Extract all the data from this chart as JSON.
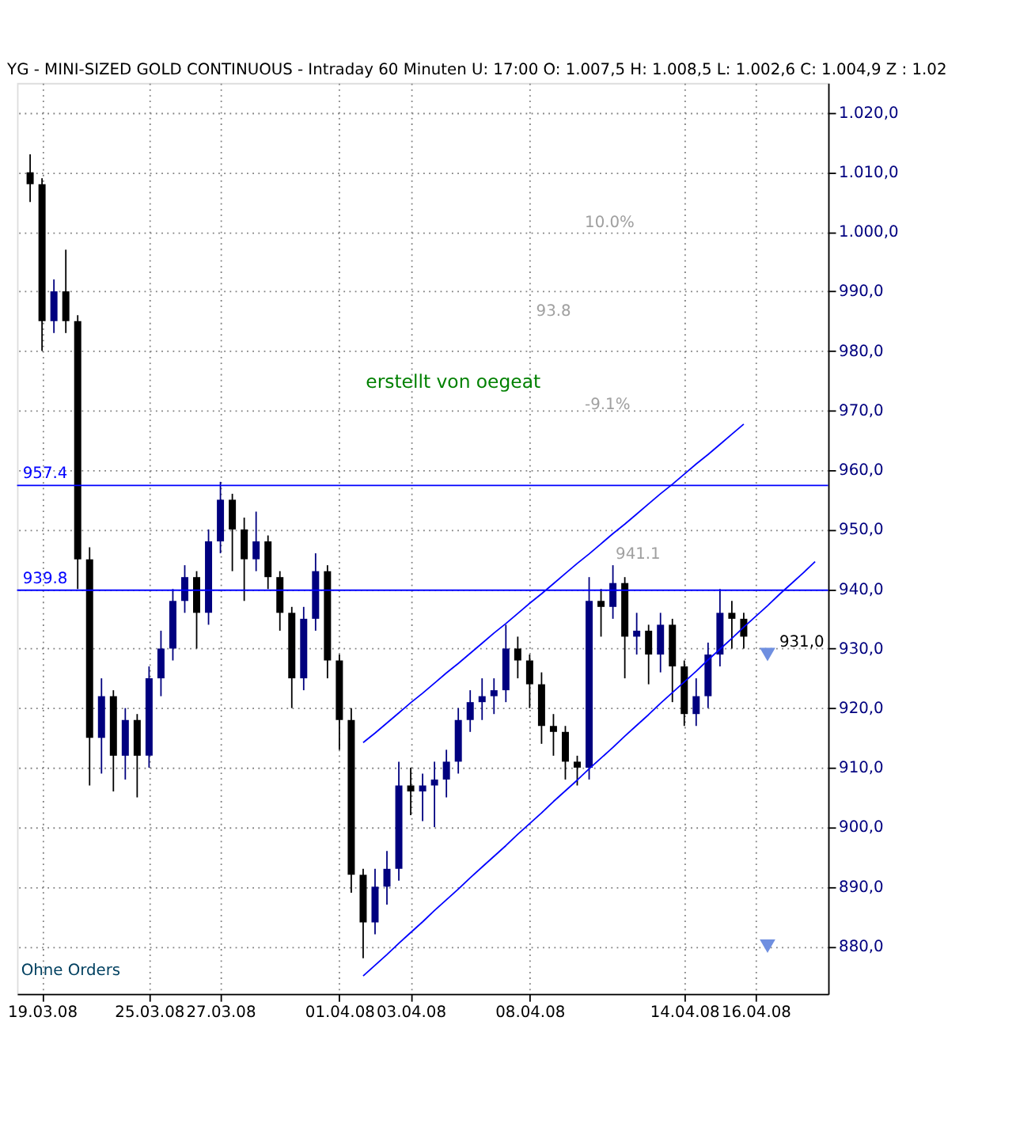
{
  "chart_data": {
    "type": "candlestick",
    "title": "YG - MINI-SIZED GOLD CONTINUOUS - Intraday 60 Minuten   U: 17:00   O: 1.007,5   H: 1.008,5   L: 1.002,6   C: 1.004,9   Z : 1.02",
    "categories": [
      null,
      "19.03.08",
      null,
      null,
      null,
      null,
      null,
      null,
      null,
      null,
      "25.03.08",
      null,
      null,
      null,
      null,
      null,
      "27.03.08",
      null,
      null,
      null,
      null,
      null,
      null,
      null,
      null,
      null,
      "01.04.08",
      null,
      null,
      null,
      null,
      null,
      "03.04.08",
      null,
      null,
      null,
      null,
      null,
      null,
      null,
      null,
      null,
      "08.04.08",
      null,
      null,
      null,
      null,
      null,
      null,
      null,
      null,
      null,
      null,
      null,
      null,
      "14.04.08",
      null,
      null,
      null,
      null,
      null,
      "16.04.08",
      null,
      null,
      null,
      null,
      null
    ],
    "series": [
      {
        "ohlc": [
          [
            1010,
            1013,
            1005,
            1008
          ],
          [
            1008,
            1009,
            980,
            985
          ],
          [
            985,
            992,
            983,
            990
          ],
          [
            990,
            997,
            983,
            985
          ],
          [
            985,
            986,
            940,
            945
          ],
          [
            945,
            947,
            907,
            915
          ],
          [
            915,
            925,
            909,
            922
          ],
          [
            922,
            923,
            906,
            912
          ],
          [
            912,
            920,
            908,
            918
          ],
          [
            918,
            919,
            905,
            912
          ],
          [
            912,
            927,
            910,
            925
          ],
          [
            925,
            933,
            922,
            930
          ],
          [
            930,
            940,
            928,
            938
          ],
          [
            938,
            944,
            936,
            942
          ],
          [
            942,
            943,
            930,
            936
          ],
          [
            936,
            950,
            934,
            948
          ],
          [
            948,
            958,
            946,
            955
          ],
          [
            955,
            956,
            943,
            950
          ],
          [
            950,
            952,
            938,
            945
          ],
          [
            945,
            953,
            943,
            948
          ],
          [
            948,
            949,
            940,
            942
          ],
          [
            942,
            943,
            933,
            936
          ],
          [
            936,
            937,
            920,
            925
          ],
          [
            925,
            937,
            923,
            935
          ],
          [
            935,
            946,
            933,
            943
          ],
          [
            943,
            944,
            925,
            928
          ],
          [
            928,
            929,
            913,
            918
          ],
          [
            918,
            920,
            889,
            892
          ],
          [
            892,
            893,
            878,
            884
          ],
          [
            884,
            893,
            882,
            890
          ],
          [
            890,
            896,
            887,
            893
          ],
          [
            893,
            911,
            891,
            907
          ],
          [
            907,
            910,
            902,
            906
          ],
          [
            906,
            909,
            901,
            907
          ],
          [
            907,
            911,
            900,
            908
          ],
          [
            908,
            913,
            905,
            911
          ],
          [
            911,
            920,
            909,
            918
          ],
          [
            918,
            923,
            916,
            921
          ],
          [
            921,
            925,
            918,
            922
          ],
          [
            922,
            925,
            919,
            923
          ],
          [
            923,
            934,
            921,
            930
          ],
          [
            930,
            932,
            925,
            928
          ],
          [
            928,
            929,
            920,
            924
          ],
          [
            924,
            926,
            914,
            917
          ],
          [
            917,
            919,
            912,
            916
          ],
          [
            916,
            917,
            908,
            911
          ],
          [
            911,
            912,
            907,
            910
          ],
          [
            910,
            942,
            908,
            938
          ],
          [
            938,
            940,
            932,
            937
          ],
          [
            937,
            944,
            935,
            941
          ],
          [
            941,
            942,
            925,
            932
          ],
          [
            932,
            936,
            929,
            933
          ],
          [
            933,
            934,
            924,
            929
          ],
          [
            929,
            936,
            926,
            934
          ],
          [
            934,
            935,
            921,
            927
          ],
          [
            927,
            928,
            917,
            919
          ],
          [
            919,
            925,
            917,
            922
          ],
          [
            922,
            931,
            920,
            929
          ],
          [
            929,
            940,
            927,
            936
          ],
          [
            936,
            938,
            930,
            935
          ],
          [
            935,
            936,
            930,
            932
          ],
          null,
          null,
          null,
          null,
          null,
          null
        ],
        "colors": [
          "#000000",
          "#000000",
          "#00007f",
          "#000000",
          "#000000",
          "#000000",
          "#00007f",
          "#000000",
          "#00007f",
          "#000000",
          "#00007f",
          "#00007f",
          "#00007f",
          "#00007f",
          "#000000",
          "#00007f",
          "#00007f",
          "#000000",
          "#000000",
          "#00007f",
          "#000000",
          "#000000",
          "#000000",
          "#00007f",
          "#00007f",
          "#000000",
          "#000000",
          "#000000",
          "#000000",
          "#00007f",
          "#00007f",
          "#00007f",
          "#000000",
          "#00007f",
          "#00007f",
          "#00007f",
          "#00007f",
          "#00007f",
          "#00007f",
          "#00007f",
          "#00007f",
          "#000000",
          "#000000",
          "#000000",
          "#000000",
          "#000000",
          "#000000",
          "#00007f",
          "#000000",
          "#00007f",
          "#000000",
          "#00007f",
          "#000000",
          "#00007f",
          "#000000",
          "#000000",
          "#00007f",
          "#00007f",
          "#00007f",
          "#000000",
          "#000000",
          null,
          null,
          null,
          null,
          null,
          null
        ]
      },
      {
        "type": "line",
        "color": "#0000ff",
        "values": [
          null,
          null,
          null,
          null,
          null,
          null,
          null,
          null,
          null,
          null,
          null,
          null,
          null,
          null,
          null,
          null,
          null,
          null,
          null,
          null,
          null,
          null,
          null,
          null,
          null,
          null,
          null,
          null,
          914.2,
          915.8,
          917.5,
          919.2,
          920.9,
          922.5,
          924.2,
          925.9,
          927.5,
          929.2,
          930.9,
          932.6,
          934.2,
          935.9,
          937.6,
          939.2,
          940.9,
          942.6,
          944.3,
          945.9,
          947.6,
          949.3,
          950.9,
          952.6,
          954.3,
          956.0,
          957.6,
          959.3,
          961.0,
          962.6,
          964.3,
          966.0,
          967.7,
          null,
          null,
          null,
          null,
          null,
          null
        ]
      },
      {
        "type": "line",
        "color": "#0000ff",
        "values": [
          null,
          null,
          null,
          null,
          null,
          null,
          null,
          null,
          null,
          null,
          null,
          null,
          null,
          null,
          null,
          null,
          null,
          null,
          null,
          null,
          null,
          null,
          null,
          null,
          null,
          null,
          null,
          null,
          875.0,
          876.8,
          878.6,
          880.5,
          882.3,
          884.1,
          886.0,
          887.8,
          889.6,
          891.5,
          893.3,
          895.1,
          896.9,
          898.8,
          900.6,
          902.4,
          904.3,
          906.1,
          907.9,
          909.8,
          911.6,
          913.4,
          915.3,
          917.1,
          918.9,
          920.8,
          922.6,
          924.4,
          926.2,
          928.1,
          929.9,
          931.7,
          933.6,
          935.4,
          937.2,
          939.1,
          940.9,
          942.7,
          944.6
        ]
      },
      {
        "type": "scatter",
        "marker": "triangle",
        "color": "#6f8fe0",
        "values": [
          null,
          null,
          null,
          null,
          null,
          null,
          null,
          null,
          null,
          null,
          null,
          null,
          null,
          null,
          null,
          null,
          null,
          null,
          null,
          null,
          null,
          null,
          null,
          null,
          null,
          null,
          null,
          null,
          null,
          null,
          null,
          null,
          null,
          null,
          null,
          null,
          null,
          null,
          null,
          null,
          null,
          null,
          null,
          null,
          null,
          null,
          null,
          null,
          null,
          null,
          null,
          null,
          null,
          null,
          null,
          null,
          null,
          null,
          null,
          null,
          null,
          null,
          929,
          null,
          null,
          null,
          null
        ]
      },
      {
        "type": "scatter",
        "marker": "triangle",
        "color": "#6f8fe0",
        "values": [
          null,
          null,
          null,
          null,
          null,
          null,
          null,
          null,
          null,
          null,
          null,
          null,
          null,
          null,
          null,
          null,
          null,
          null,
          null,
          null,
          null,
          null,
          null,
          null,
          null,
          null,
          null,
          null,
          null,
          null,
          null,
          null,
          null,
          null,
          null,
          null,
          null,
          null,
          null,
          null,
          null,
          null,
          null,
          null,
          null,
          null,
          null,
          null,
          null,
          null,
          null,
          null,
          null,
          null,
          null,
          null,
          null,
          null,
          null,
          null,
          null,
          null,
          880,
          null,
          null,
          null,
          null
        ]
      }
    ],
    "ylim": [
      872,
      1025
    ],
    "yticks": [
      {
        "value": 880,
        "label": "880,0"
      },
      {
        "value": 890,
        "label": "890,0"
      },
      {
        "value": 900,
        "label": "900,0"
      },
      {
        "value": 910,
        "label": "910,0"
      },
      {
        "value": 920,
        "label": "920,0"
      },
      {
        "value": 930,
        "label": "930,0"
      },
      {
        "value": 940,
        "label": "940,0"
      },
      {
        "value": 950,
        "label": "950,0"
      },
      {
        "value": 960,
        "label": "960,0"
      },
      {
        "value": 970,
        "label": "970,0"
      },
      {
        "value": 980,
        "label": "980,0"
      },
      {
        "value": 990,
        "label": "990,0"
      },
      {
        "value": 1000,
        "label": "1.000,0"
      },
      {
        "value": 1010,
        "label": "1.010,0"
      },
      {
        "value": 1020,
        "label": "1.020,0"
      }
    ],
    "ref_lines": [
      {
        "axis": "y",
        "value": 957.4,
        "label": "957.4",
        "color": "#0000ff"
      },
      {
        "axis": "y",
        "value": 939.8,
        "label": "939.8",
        "color": "#0000ff"
      }
    ],
    "annotations": [
      "erstellt von oegeat",
      "10.0%",
      "93.8",
      "-9.1%",
      "941.1",
      "931,0",
      "Ohne Orders"
    ],
    "grid": true
  }
}
